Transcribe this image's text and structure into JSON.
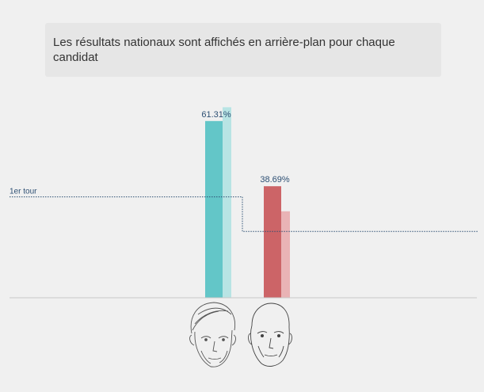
{
  "note": "Les résultats nationaux sont affichés en arrière-plan pour chaque candidat",
  "colors": {
    "background": "#f0f0f0",
    "note_background": "#e6e6e6",
    "label_text": "#2d4f73",
    "reference_line": "#2d4f73",
    "baseline": "#c8c8c8"
  },
  "chart_data": {
    "type": "bar",
    "title": "",
    "categories": [
      "candidate-1",
      "candidate-2"
    ],
    "series": [
      {
        "values": [
          61.31,
          38.69
        ],
        "colors": [
          "#63c6c8",
          "#cc6467"
        ]
      },
      {
        "values": [
          66.1,
          30.0
        ],
        "colors": [
          "#b8e4e4",
          "#e9b3b5"
        ],
        "role": "national-results-background"
      }
    ],
    "value_labels": [
      "61.31%",
      "38.69%"
    ],
    "reference": {
      "label": "1er tour",
      "values": [
        35.0,
        23.0
      ]
    },
    "ylim": [
      0,
      75
    ],
    "grid": false,
    "legend": "none",
    "portrait_icons": [
      "male-portrait-sketch-icon",
      "bald-male-portrait-sketch-icon"
    ]
  }
}
